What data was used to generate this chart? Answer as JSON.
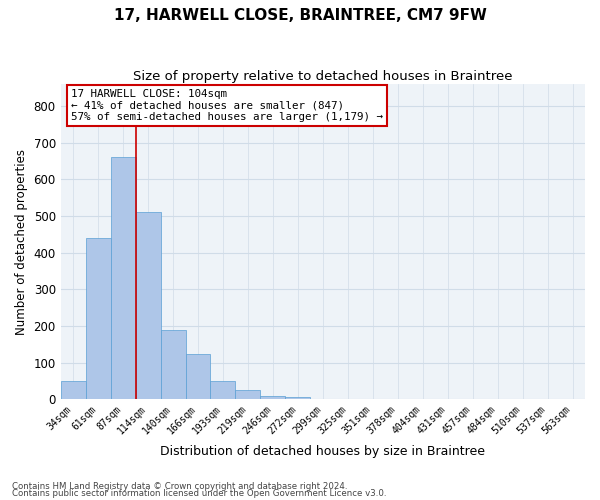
{
  "title1": "17, HARWELL CLOSE, BRAINTREE, CM7 9FW",
  "title2": "Size of property relative to detached houses in Braintree",
  "xlabel": "Distribution of detached houses by size in Braintree",
  "ylabel": "Number of detached properties",
  "footnote1": "Contains HM Land Registry data © Crown copyright and database right 2024.",
  "footnote2": "Contains public sector information licensed under the Open Government Licence v3.0.",
  "bin_labels": [
    "34sqm",
    "61sqm",
    "87sqm",
    "114sqm",
    "140sqm",
    "166sqm",
    "193sqm",
    "219sqm",
    "246sqm",
    "272sqm",
    "299sqm",
    "325sqm",
    "351sqm",
    "378sqm",
    "404sqm",
    "431sqm",
    "457sqm",
    "484sqm",
    "510sqm",
    "537sqm",
    "563sqm"
  ],
  "bar_values": [
    50,
    440,
    660,
    510,
    190,
    125,
    50,
    25,
    10,
    5,
    2,
    0,
    0,
    0,
    0,
    0,
    0,
    0,
    0,
    0,
    0
  ],
  "bar_color": "#aec6e8",
  "bar_edge_color": "#5a9fd4",
  "property_line_x": 2.5,
  "property_line_color": "#cc0000",
  "annotation_text": "17 HARWELL CLOSE: 104sqm\n← 41% of detached houses are smaller (847)\n57% of semi-detached houses are larger (1,179) →",
  "annotation_box_color": "#ffffff",
  "annotation_box_edge": "#cc0000",
  "ylim": [
    0,
    860
  ],
  "yticks": [
    0,
    100,
    200,
    300,
    400,
    500,
    600,
    700,
    800
  ],
  "grid_color": "#d0dce8",
  "background_color": "#eef3f8",
  "title1_fontsize": 11,
  "title2_fontsize": 9.5,
  "ylabel_fontsize": 8.5,
  "xlabel_fontsize": 9
}
